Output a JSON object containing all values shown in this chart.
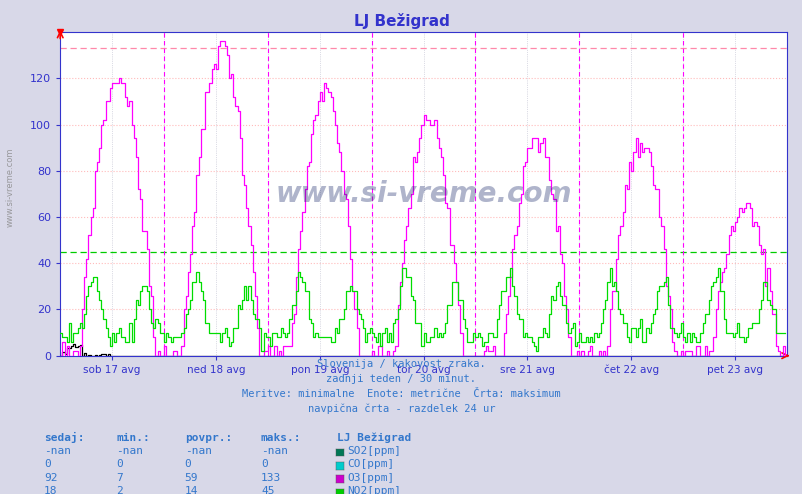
{
  "title": "LJ Bežigrad",
  "title_color": "#3333cc",
  "fig_bg": "#d8d8e8",
  "plot_bg": "#ffffff",
  "hgrid_color": "#ffbbbb",
  "vgrid_color": "#bbbbcc",
  "vdash_color": "#ff00ff",
  "maxline_color": "#ff88aa",
  "avgline_color": "#00cc00",
  "axis_color": "#3333cc",
  "text_color": "#3377cc",
  "border_color": "#3333cc",
  "ylim": [
    0,
    140
  ],
  "xlim": [
    0,
    7
  ],
  "yticks": [
    0,
    20,
    40,
    60,
    80,
    100,
    120
  ],
  "max_dashed_y": 133,
  "avg_dashed_y": 45,
  "n_points": 336,
  "day_labels": [
    "sob 17 avg",
    "ned 18 avg",
    "pon 19 avg",
    "tor 20 avg",
    "sre 21 avg",
    "čet 22 avg",
    "pet 23 avg"
  ],
  "info_text": [
    "Slovenija / kakovost zraka.",
    "zadnji teden / 30 minut.",
    "Meritve: minimalne  Enote: metrične  Črta: maksimum",
    "navpična črta - razdelek 24 ur"
  ],
  "table_headers": [
    "sedaj:",
    "min.:",
    "povpr.:",
    "maks.:"
  ],
  "station_label": "LJ Bežigrad",
  "rows": [
    {
      "sedaj": "-nan",
      "min": "-nan",
      "povpr": "-nan",
      "maks": "-nan",
      "label": "SO2[ppm]",
      "color": "#007755"
    },
    {
      "sedaj": "0",
      "min": "0",
      "povpr": "0",
      "maks": "0",
      "label": "CO[ppm]",
      "color": "#00cccc"
    },
    {
      "sedaj": "92",
      "min": "7",
      "povpr": "59",
      "maks": "133",
      "label": "O3[ppm]",
      "color": "#cc00cc"
    },
    {
      "sedaj": "18",
      "min": "2",
      "povpr": "14",
      "maks": "45",
      "label": "NO2[ppm]",
      "color": "#00cc00"
    }
  ],
  "o3_color": "#ff00ff",
  "no2_color": "#00dd00",
  "so2_color": "#000000",
  "co_color": "#00cccc",
  "wm_color": "#1a2a6a"
}
